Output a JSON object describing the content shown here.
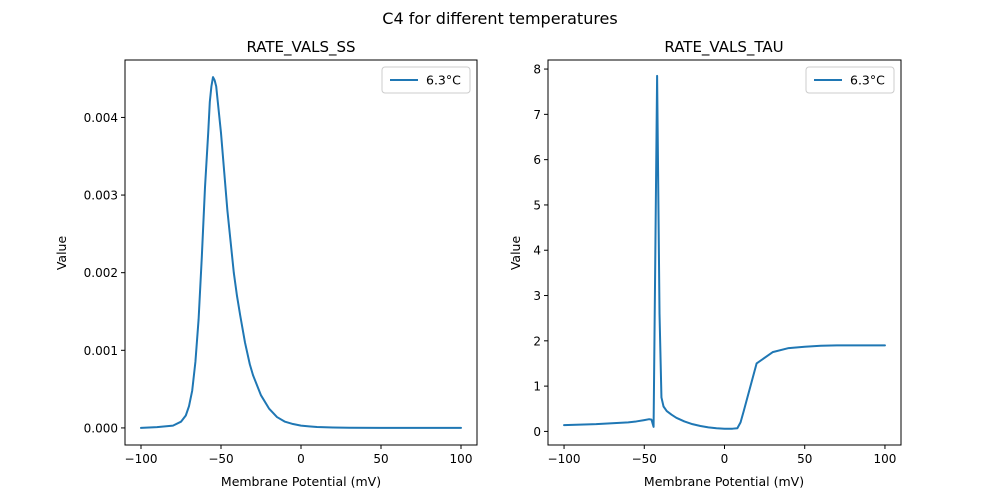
{
  "figure": {
    "suptitle": "C4 for different temperatures"
  },
  "chart_data": [
    {
      "type": "line",
      "title": "RATE_VALS_SS",
      "xlabel": "Membrane Potential (mV)",
      "ylabel": "Value",
      "xlim": [
        -110,
        110
      ],
      "ylim": [
        -0.00022,
        0.00474
      ],
      "xticks": [
        -100,
        -50,
        0,
        50,
        100
      ],
      "xtick_labels": [
        "−100",
        "−50",
        "0",
        "50",
        "100"
      ],
      "yticks": [
        0,
        0.001,
        0.002,
        0.003,
        0.004
      ],
      "ytick_labels": [
        "0.000",
        "0.001",
        "0.002",
        "0.003",
        "0.004"
      ],
      "grid": false,
      "legend": {
        "position": "top-right",
        "entries": [
          "6.3°C"
        ]
      },
      "series": [
        {
          "name": "6.3°C",
          "color": "#1f77b4",
          "x": [
            -100,
            -90,
            -80,
            -75,
            -72,
            -70,
            -68,
            -66,
            -64,
            -62,
            -60,
            -58,
            -57,
            -56,
            -55,
            -54,
            -53,
            -52,
            -50,
            -48,
            -46,
            -44,
            -42,
            -40,
            -38,
            -35,
            -32,
            -30,
            -25,
            -20,
            -15,
            -10,
            -5,
            0,
            5,
            10,
            20,
            30,
            50,
            70,
            100
          ],
          "y": [
            0.0,
            1e-05,
            3e-05,
            8e-05,
            0.00016,
            0.00028,
            0.00048,
            0.00085,
            0.0014,
            0.0022,
            0.0031,
            0.0038,
            0.0042,
            0.0044,
            0.00452,
            0.00448,
            0.0044,
            0.0042,
            0.0038,
            0.0033,
            0.0028,
            0.0024,
            0.002,
            0.0017,
            0.00145,
            0.0011,
            0.00082,
            0.00068,
            0.00042,
            0.00025,
            0.00014,
            8e-05,
            5e-05,
            3e-05,
            2e-05,
            1.2e-05,
            6e-06,
            3e-06,
            1e-06,
            0.0,
            0.0
          ]
        }
      ]
    },
    {
      "type": "line",
      "title": "RATE_VALS_TAU",
      "xlabel": "Membrane Potential (mV)",
      "ylabel": "Value",
      "xlim": [
        -110,
        110
      ],
      "ylim": [
        -0.3,
        8.2
      ],
      "xticks": [
        -100,
        -50,
        0,
        50,
        100
      ],
      "xtick_labels": [
        "−100",
        "−50",
        "0",
        "50",
        "100"
      ],
      "yticks": [
        0,
        1,
        2,
        3,
        4,
        5,
        6,
        7,
        8
      ],
      "ytick_labels": [
        "0",
        "1",
        "2",
        "3",
        "4",
        "5",
        "6",
        "7",
        "8"
      ],
      "grid": false,
      "legend": {
        "position": "top-right",
        "entries": [
          "6.3°C"
        ]
      },
      "series": [
        {
          "name": "6.3°C",
          "color": "#1f77b4",
          "x": [
            -100,
            -90,
            -80,
            -70,
            -60,
            -55,
            -50,
            -47,
            -45.5,
            -44.2,
            -42,
            -40.5,
            -39.3,
            -38,
            -36,
            -33,
            -30,
            -25,
            -20,
            -15,
            -10,
            -5,
            0,
            5,
            8,
            10,
            12,
            20,
            30,
            40,
            50,
            60,
            70,
            80,
            100
          ],
          "y": [
            0.14,
            0.15,
            0.16,
            0.18,
            0.2,
            0.22,
            0.25,
            0.27,
            0.26,
            0.1,
            7.85,
            2.6,
            0.75,
            0.55,
            0.45,
            0.37,
            0.3,
            0.22,
            0.16,
            0.12,
            0.09,
            0.07,
            0.06,
            0.06,
            0.07,
            0.2,
            0.45,
            1.5,
            1.75,
            1.84,
            1.87,
            1.89,
            1.9,
            1.9,
            1.9
          ]
        }
      ]
    }
  ]
}
